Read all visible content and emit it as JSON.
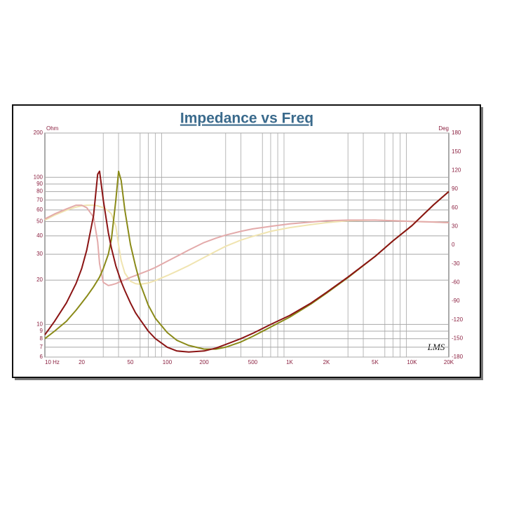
{
  "chart_data": {
    "type": "line",
    "title": "Impedance vs Freq",
    "ylabel": "Ohm",
    "y2label": "Deg",
    "logo": "LMS",
    "xscale": "log",
    "yscale": "log",
    "grid": true,
    "xlim": [
      10,
      20000
    ],
    "ylim": [
      6,
      200
    ],
    "y2lim": [
      -180,
      180
    ],
    "xticks": [
      {
        "value": 10,
        "label": "10  Hz"
      },
      20,
      50,
      100,
      200,
      500,
      {
        "value": 1000,
        "label": "1K"
      },
      {
        "value": 2000,
        "label": "2K"
      },
      {
        "value": 5000,
        "label": "5K"
      },
      {
        "value": 10000,
        "label": "10K"
      },
      {
        "value": 20000,
        "label": "20K"
      }
    ],
    "x_minor_ticks": [
      30,
      40,
      60,
      70,
      80,
      90,
      300,
      400,
      600,
      700,
      800,
      900,
      3000,
      4000,
      6000,
      7000,
      8000,
      9000
    ],
    "yticks": [
      6,
      7,
      8,
      9,
      10,
      20,
      30,
      40,
      50,
      60,
      70,
      80,
      90,
      100,
      200
    ],
    "y2ticks": [
      -180,
      -150,
      -120,
      -90,
      -60,
      -30,
      0,
      30,
      60,
      90,
      120,
      150,
      180
    ],
    "x": [
      10,
      12,
      15,
      18,
      20,
      22,
      25,
      27,
      28,
      30,
      33,
      35,
      38,
      40,
      42,
      45,
      50,
      55,
      60,
      70,
      80,
      100,
      120,
      150,
      200,
      250,
      300,
      400,
      500,
      700,
      1000,
      1500,
      2000,
      3000,
      5000,
      7000,
      10000,
      15000,
      20000
    ],
    "series": [
      {
        "color": "#f0e4b0",
        "axis": "y2",
        "values": [
          40,
          48,
          56,
          61,
          63,
          64,
          64,
          63,
          62,
          60,
          55,
          50,
          30,
          0,
          -25,
          -45,
          -58,
          -62,
          -63,
          -61,
          -57,
          -49,
          -42,
          -33,
          -20,
          -10,
          -2,
          8,
          14,
          22,
          28,
          33,
          36,
          39,
          40,
          39,
          38,
          37,
          36
        ]
      },
      {
        "color": "#e3aaaa",
        "axis": "y2",
        "values": [
          42,
          50,
          58,
          64,
          64,
          60,
          45,
          5,
          -30,
          -60,
          -65,
          -64,
          -62,
          -60,
          -58,
          -56,
          -52,
          -49,
          -46,
          -41,
          -36,
          -26,
          -18,
          -8,
          4,
          11,
          16,
          22,
          26,
          30,
          34,
          37,
          39,
          40,
          40,
          39,
          38,
          37,
          36
        ]
      },
      {
        "color": "#8a8a18",
        "values": [
          8,
          9,
          10.5,
          12.5,
          14,
          15.5,
          18,
          20,
          21,
          24,
          30,
          38,
          70,
          110,
          95,
          60,
          35,
          25,
          19,
          13.5,
          11,
          8.8,
          7.8,
          7.2,
          6.8,
          6.8,
          7,
          7.6,
          8.3,
          9.6,
          11.2,
          13.8,
          16.3,
          20.8,
          29,
          37,
          47,
          65,
          80
        ]
      },
      {
        "color": "#8b1414",
        "values": [
          8.5,
          10.5,
          14,
          19,
          24,
          32,
          55,
          105,
          110,
          70,
          42,
          33,
          25,
          22,
          19.5,
          17,
          14,
          12,
          10.8,
          9,
          8,
          7,
          6.6,
          6.5,
          6.6,
          6.9,
          7.3,
          8,
          8.7,
          10,
          11.5,
          14,
          16.5,
          21,
          29,
          37,
          47,
          65,
          80
        ]
      }
    ]
  }
}
